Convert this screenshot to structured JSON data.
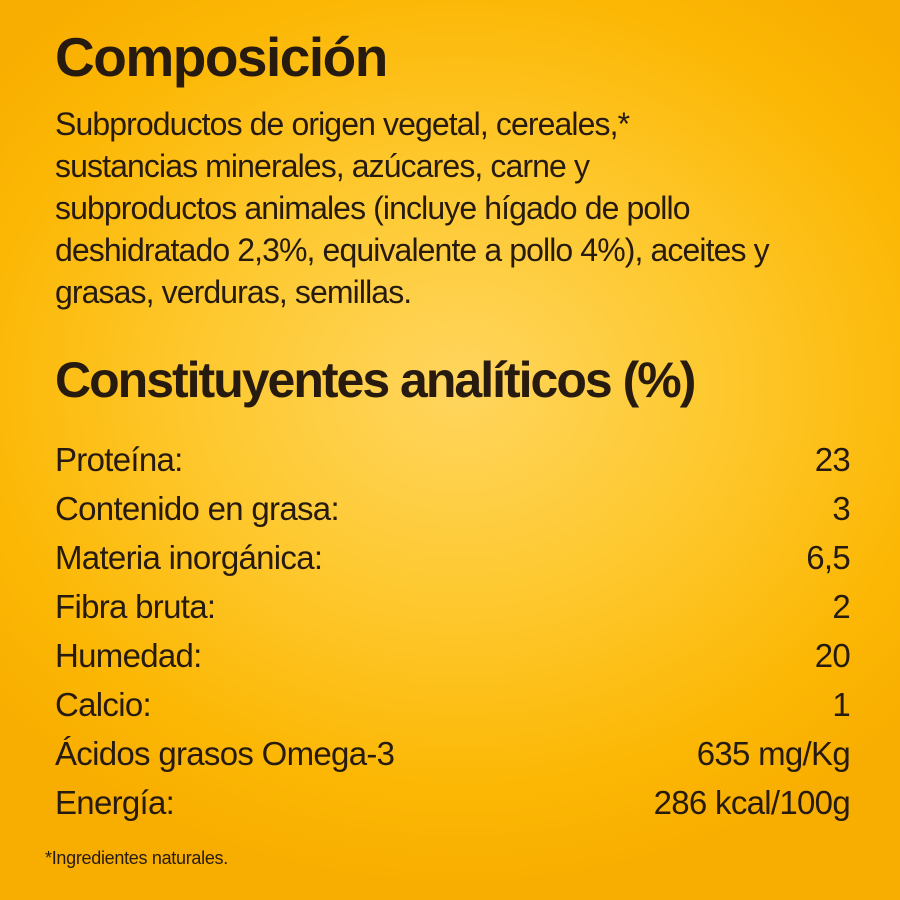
{
  "colors": {
    "background_center": "#FFD55E",
    "background_edge": "#F8AE00",
    "text": "#271B10"
  },
  "composition": {
    "title": "Composición",
    "lines": [
      "Subproductos de origen vegetal, cereales,*",
      "sustancias minerales, azúcares, carne y",
      "subproductos animales (incluye hígado de pollo",
      "deshidratado 2,3%, equivalente a pollo 4%), aceites y",
      "grasas, verduras, semillas."
    ]
  },
  "analytical": {
    "title": "Constituyentes analíticos (%)",
    "rows": [
      {
        "label": "Proteína:",
        "value": "23"
      },
      {
        "label": "Contenido en grasa:",
        "value": "3"
      },
      {
        "label": "Materia inorgánica:",
        "value": "6,5"
      },
      {
        "label": "Fibra bruta:",
        "value": "2"
      },
      {
        "label": "Humedad:",
        "value": "20"
      },
      {
        "label": "Calcio:",
        "value": "1"
      },
      {
        "label": "Ácidos grasos Omega-3",
        "value": "635 mg/Kg"
      },
      {
        "label": "Energía:",
        "value": "286 kcal/100g"
      }
    ]
  },
  "footnote": "*Ingredientes naturales."
}
